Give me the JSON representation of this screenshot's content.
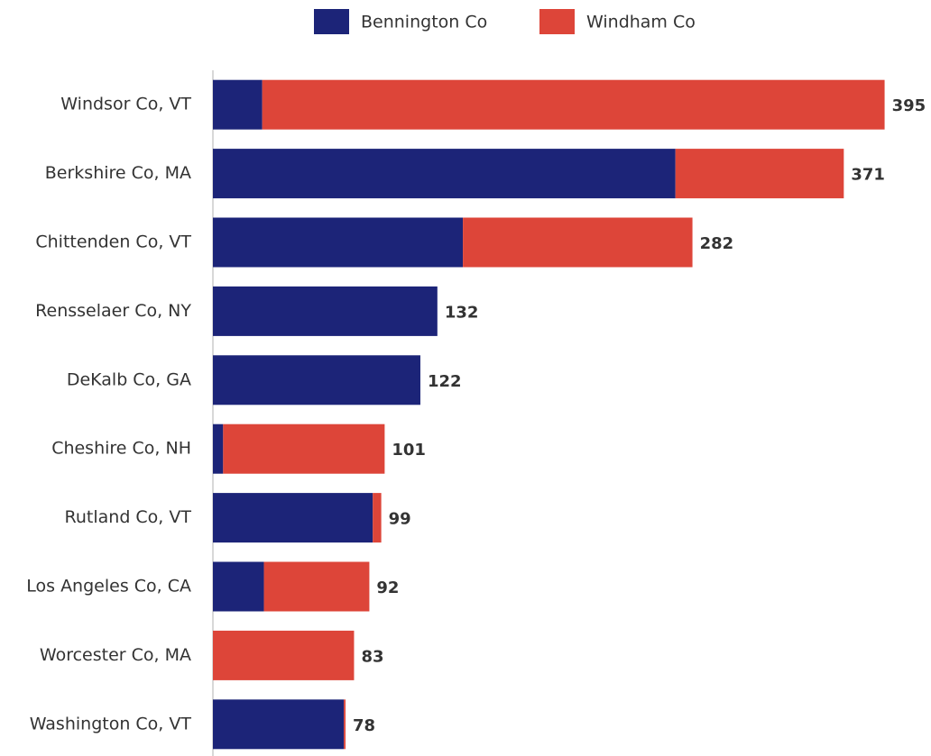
{
  "chart_data": {
    "type": "stacked_barh",
    "categories": [
      "Windsor Co, VT",
      "Berkshire Co, MA",
      "Chittenden Co, VT",
      "Rensselaer Co, NY",
      "DeKalb Co, GA",
      "Cheshire Co, NH",
      "Rutland Co, VT",
      "Los Angeles Co, CA",
      "Worcester Co, MA",
      "Washington Co, VT"
    ],
    "series": [
      {
        "name": "Bennington Co",
        "color": "#1c2478",
        "values": [
          29,
          272,
          147,
          132,
          122,
          6,
          94,
          30,
          0,
          77
        ]
      },
      {
        "name": "Windham Co",
        "color": "#dd4539",
        "values": [
          366,
          99,
          135,
          0,
          0,
          95,
          5,
          62,
          83,
          1
        ]
      }
    ],
    "totals": [
      395,
      371,
      282,
      132,
      122,
      101,
      99,
      92,
      83,
      78
    ],
    "xlim": [
      0,
      400
    ],
    "legend": "top"
  }
}
